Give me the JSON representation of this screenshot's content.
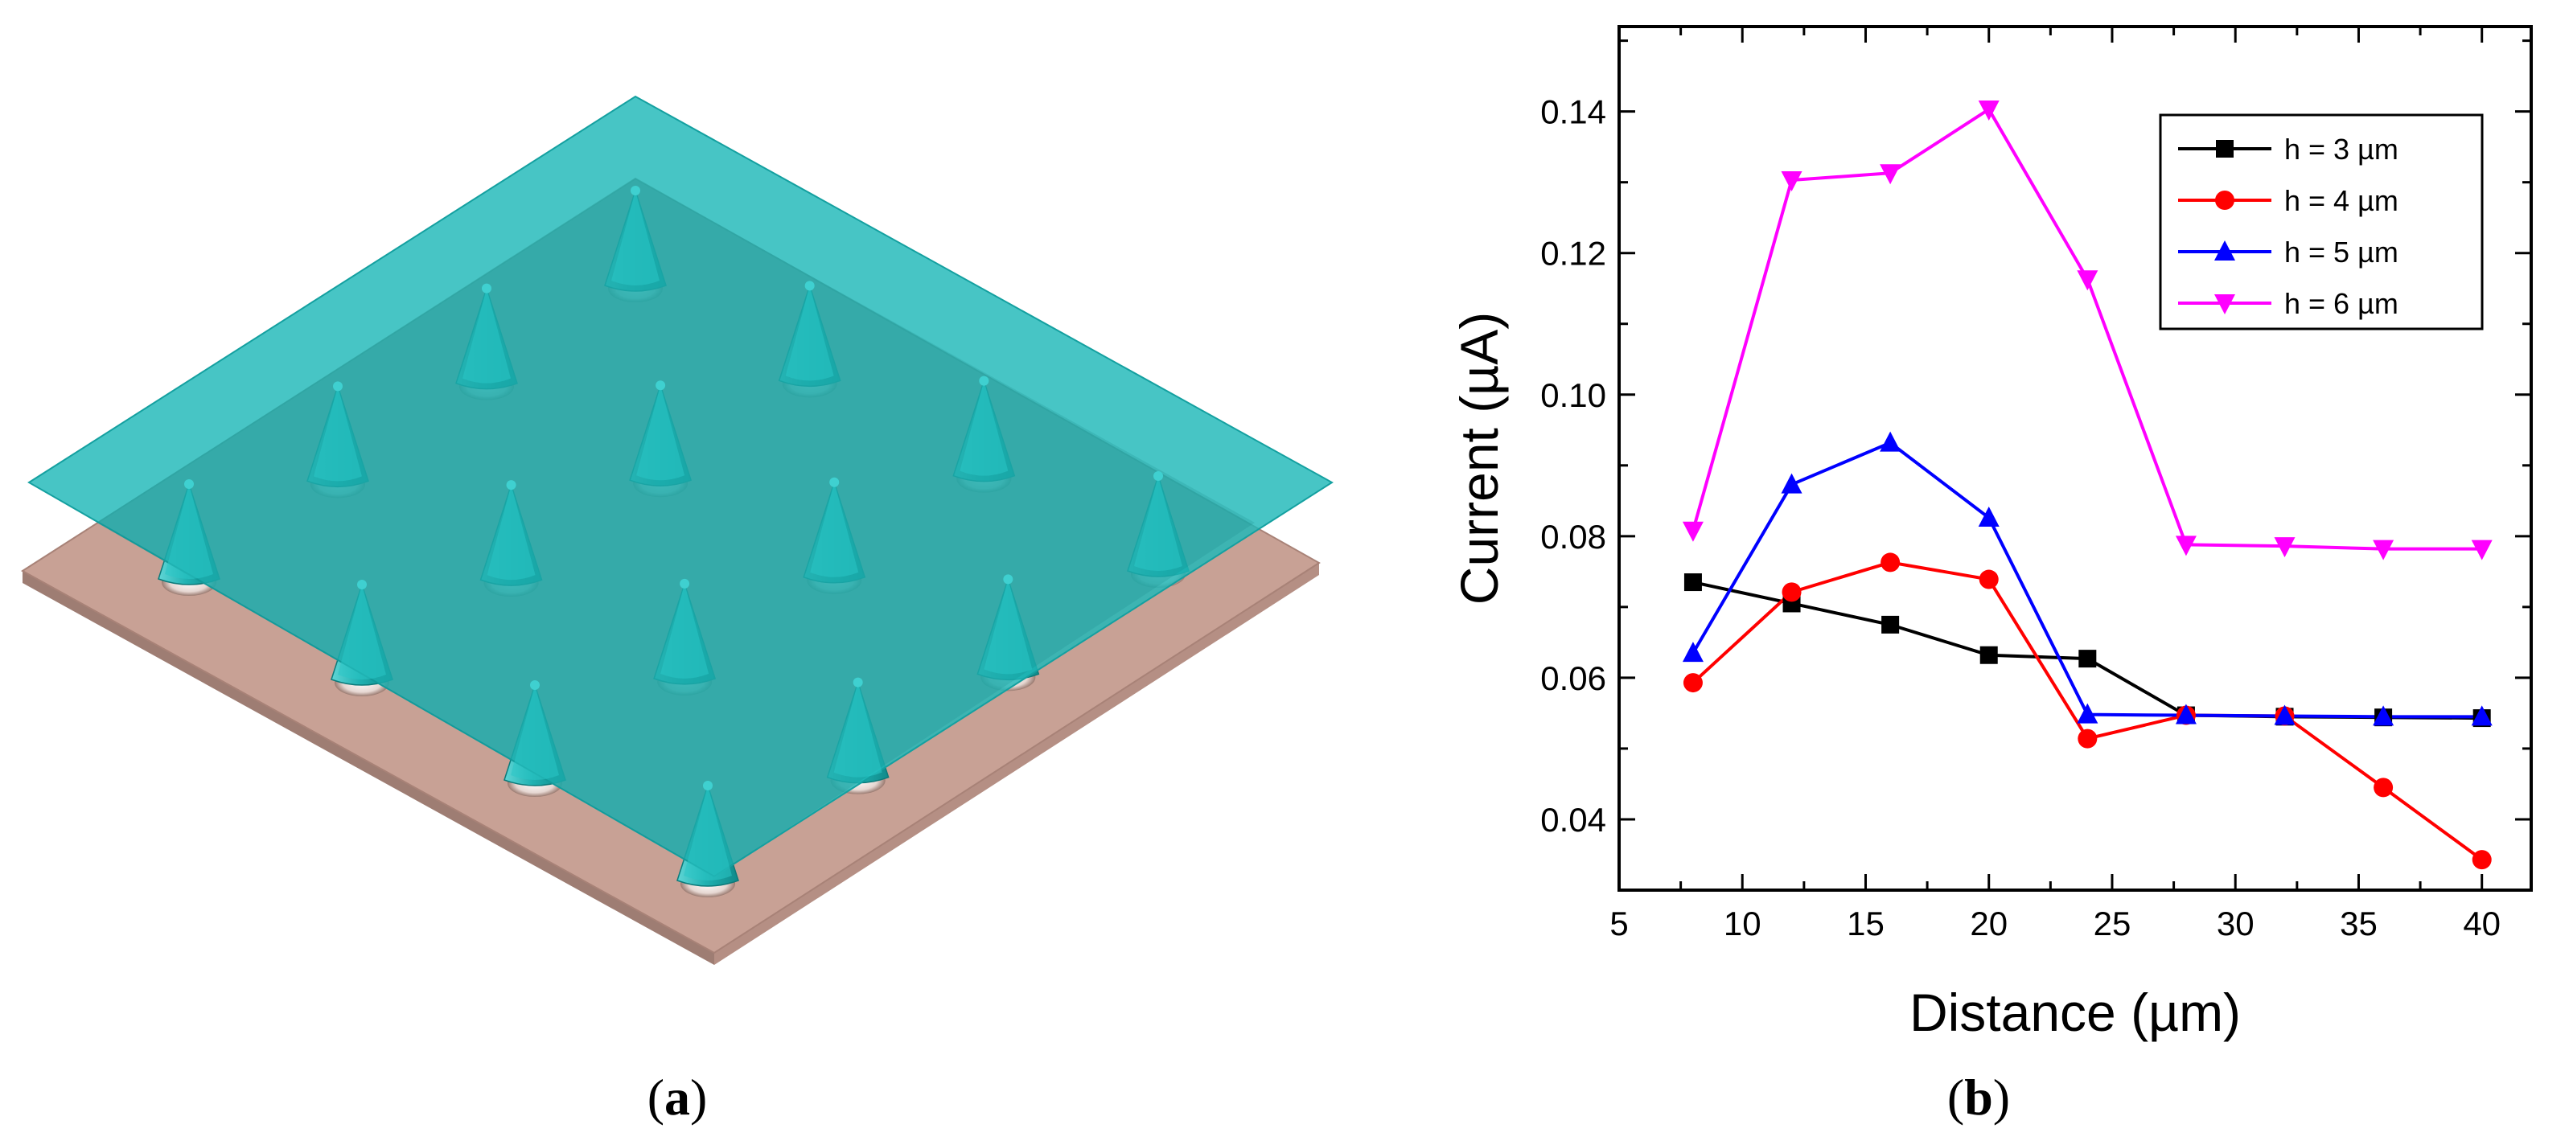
{
  "panels": {
    "a": {
      "open": "(",
      "letter": "a",
      "close": ")"
    },
    "b": {
      "open": "(",
      "letter": "b",
      "close": ")"
    }
  },
  "colors": {
    "teal": "#1fb8b8",
    "copper": "#c49a8f"
  },
  "chart_data": {
    "type": "line",
    "xlabel": "Distance (µm)",
    "ylabel": "Current (µA)",
    "xlim": [
      5,
      42
    ],
    "ylim": [
      0.03,
      0.152
    ],
    "xticks": [
      5,
      10,
      15,
      20,
      25,
      30,
      35,
      40
    ],
    "yticks": [
      0.04,
      0.06,
      0.08,
      0.1,
      0.12,
      0.14
    ],
    "xtick_labels": [
      "5",
      "10",
      "15",
      "20",
      "25",
      "30",
      "35",
      "40"
    ],
    "ytick_labels": [
      "0.04",
      "0.06",
      "0.08",
      "0.10",
      "0.12",
      "0.14"
    ],
    "x": [
      8,
      12,
      16,
      20,
      24,
      28,
      32,
      36,
      40
    ],
    "legend_position": "top-right",
    "series": [
      {
        "name": "h = 3 µm",
        "color": "#000000",
        "marker": "square",
        "values": [
          0.0735,
          0.0705,
          0.0675,
          0.0632,
          0.0627,
          0.0547,
          0.0545,
          0.0544,
          0.0543
        ]
      },
      {
        "name": "h = 4 µm",
        "color": "#ff0000",
        "marker": "circle",
        "values": [
          0.0593,
          0.0721,
          0.0763,
          0.0739,
          0.0514,
          0.0547,
          0.0546,
          0.0445,
          0.0343
        ]
      },
      {
        "name": "h = 5 µm",
        "color": "#0000ff",
        "marker": "triangle-up",
        "values": [
          0.0635,
          0.0873,
          0.0932,
          0.0826,
          0.0548,
          0.0547,
          0.0546,
          0.0545,
          0.0545
        ]
      },
      {
        "name": "h = 6 µm",
        "color": "#ff00ff",
        "marker": "triangle-down",
        "values": [
          0.0808,
          0.1303,
          0.1313,
          0.1403,
          0.1163,
          0.0788,
          0.0786,
          0.0782,
          0.0782
        ]
      }
    ]
  }
}
